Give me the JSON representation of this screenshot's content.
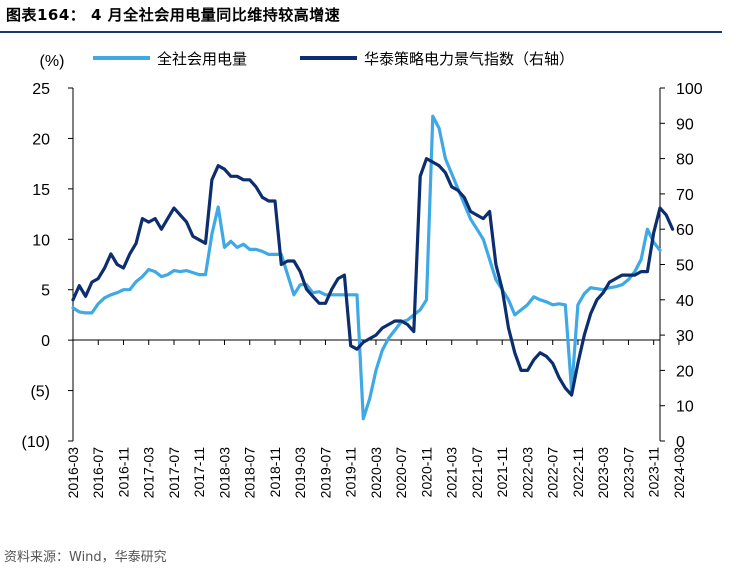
{
  "title": "图表164： 4 月全社会用电量同比维持较高增速",
  "source": "资料来源：Wind，华泰研究",
  "chart_data": {
    "type": "line",
    "left_axis": {
      "label": "(%)",
      "min": -10,
      "max": 25,
      "step": 5,
      "tick_labels": [
        "(10)",
        "(5)",
        "0",
        "5",
        "10",
        "15",
        "20",
        "25"
      ]
    },
    "right_axis": {
      "min": 0,
      "max": 100,
      "step": 10,
      "tick_labels": [
        "0",
        "10",
        "20",
        "30",
        "40",
        "50",
        "60",
        "70",
        "80",
        "90",
        "100"
      ]
    },
    "x_tick_labels": [
      "2016-03",
      "2016-07",
      "2016-11",
      "2017-03",
      "2017-07",
      "2017-11",
      "2018-03",
      "2018-07",
      "2018-11",
      "2019-03",
      "2019-07",
      "2019-11",
      "2020-03",
      "2020-07",
      "2020-11",
      "2021-03",
      "2021-07",
      "2021-11",
      "2022-03",
      "2022-07",
      "2022-11",
      "2023-03",
      "2023-07",
      "2023-11",
      "2024-03"
    ],
    "start_month": "2016-03",
    "grid": false,
    "legend_position": "top",
    "series": [
      {
        "name": "全社会用电量",
        "axis": "left",
        "color": "#3fa9e6",
        "values": [
          3.2,
          2.8,
          2.7,
          2.7,
          3.6,
          4.2,
          4.5,
          4.7,
          5.0,
          5.0,
          5.8,
          6.3,
          7.0,
          6.8,
          6.3,
          6.5,
          6.9,
          6.8,
          6.9,
          6.7,
          6.5,
          6.5,
          10.5,
          13.2,
          9.2,
          9.8,
          9.2,
          9.5,
          9.0,
          9.0,
          8.8,
          8.5,
          8.5,
          8.5,
          6.5,
          4.5,
          5.5,
          5.5,
          4.7,
          4.8,
          4.5,
          4.5,
          4.5,
          4.5,
          4.5,
          4.5,
          -7.8,
          -5.8,
          -3.0,
          -1.0,
          0.2,
          1.0,
          1.8,
          2.0,
          2.5,
          3.0,
          4.0,
          22.2,
          21.0,
          18.0,
          16.5,
          15.0,
          13.5,
          12.0,
          11.0,
          10.0,
          8.0,
          6.0,
          5.0,
          4.0,
          2.5,
          3.0,
          3.5,
          4.3,
          4.0,
          3.8,
          3.5,
          3.6,
          3.5,
          -5.0,
          3.5,
          4.6,
          5.2,
          5.1,
          5.0,
          5.2,
          5.3,
          5.5,
          6.0,
          6.8,
          8.0,
          11.0,
          9.7,
          8.9
        ]
      },
      {
        "name": "华泰策略电力景气指数（右轴）",
        "axis": "right",
        "color": "#0d2e6e",
        "values": [
          40,
          44,
          41,
          45,
          46,
          49,
          53,
          50,
          49,
          53,
          56,
          63,
          62,
          63,
          60,
          63,
          66,
          64,
          62,
          58,
          57,
          56,
          74,
          78,
          77,
          75,
          75,
          74,
          74,
          72,
          69,
          68,
          68,
          50,
          51,
          51,
          48,
          43,
          41,
          39,
          39,
          43,
          46,
          47,
          27,
          26,
          28,
          29,
          30,
          32,
          33,
          34,
          34,
          33,
          31,
          75,
          80,
          79,
          78,
          76,
          72,
          71,
          69,
          65,
          64,
          63,
          65,
          50,
          43,
          32,
          25,
          20,
          20,
          23,
          25,
          24,
          22,
          18,
          15,
          13,
          22,
          30,
          36,
          40,
          42,
          45,
          46,
          47,
          47,
          47,
          48,
          48,
          59,
          66,
          64,
          60
        ]
      }
    ]
  }
}
